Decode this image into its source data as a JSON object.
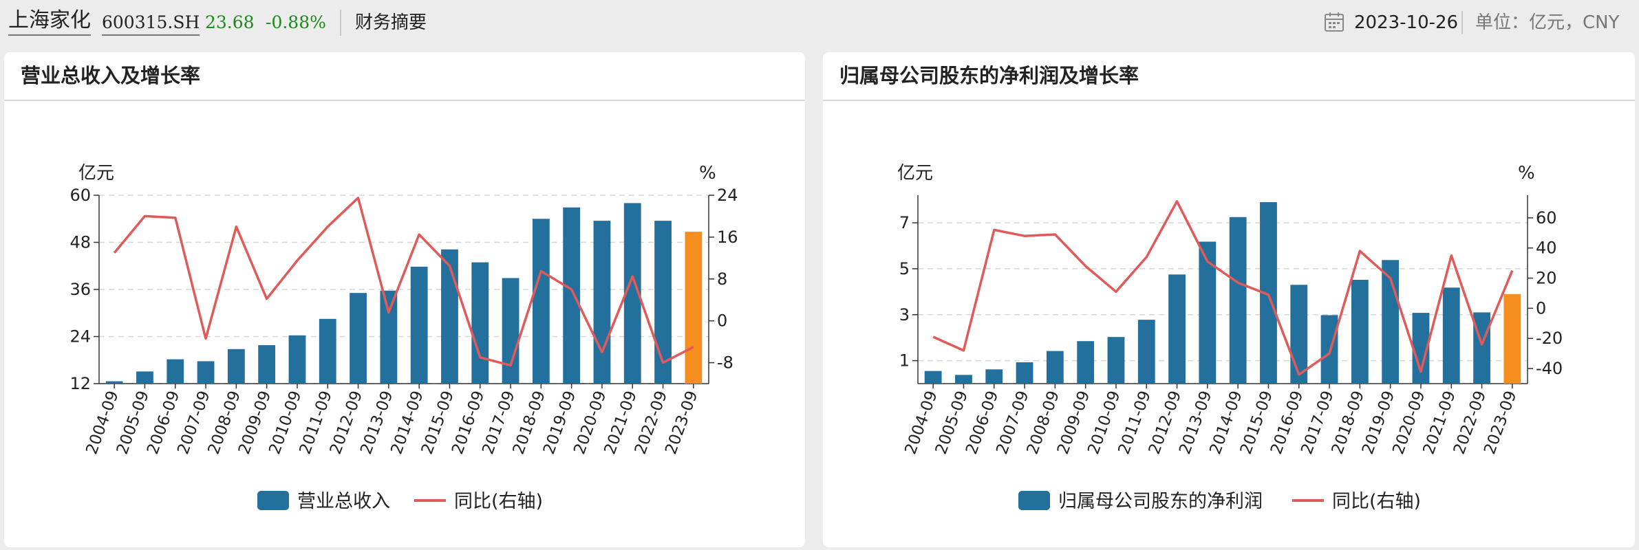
{
  "header": {
    "stock_name": "上海家化",
    "stock_code": "600315.SH",
    "price": "23.68",
    "change": "-0.88%",
    "section": "财务摘要",
    "date": "2023-10-26",
    "unit": "单位：亿元，CNY",
    "calendar_icon": "calendar-icon",
    "change_color": "#1a8a1a"
  },
  "panels": [
    {
      "title": "营业总收入及增长率"
    },
    {
      "title": "归属母公司股东的净利润及增长率"
    }
  ],
  "chart_data": [
    {
      "type": "bar",
      "title": "营业总收入及增长率",
      "left_axis_label": "亿元",
      "right_axis_label": "%",
      "categories": [
        "2004-09",
        "2005-09",
        "2006-09",
        "2007-09",
        "2008-09",
        "2009-09",
        "2010-09",
        "2011-09",
        "2012-09",
        "2013-09",
        "2014-09",
        "2015-09",
        "2016-09",
        "2017-09",
        "2018-09",
        "2019-09",
        "2020-09",
        "2021-09",
        "2022-09",
        "2023-09"
      ],
      "series": [
        {
          "name": "营业总收入",
          "type": "bar",
          "axis": "left",
          "color": "#23709d",
          "highlight_color": "#f68d1f",
          "highlight_index": 19,
          "values": [
            12.6,
            15.1,
            18.2,
            17.7,
            20.8,
            21.8,
            24.3,
            28.5,
            35.1,
            35.7,
            41.8,
            46.2,
            42.9,
            38.9,
            54.0,
            56.9,
            53.5,
            58.0,
            53.5,
            50.7
          ]
        },
        {
          "name": "同比(右轴)",
          "type": "line",
          "axis": "right",
          "color": "#e05a5a",
          "values": [
            13,
            20,
            19.7,
            -3.4,
            18,
            4.2,
            11.5,
            18,
            23.5,
            1.6,
            16.5,
            10.5,
            -7,
            -8.5,
            9.5,
            6,
            -6,
            8.5,
            -8,
            -5
          ]
        }
      ],
      "ylim_left": [
        12,
        60
      ],
      "yticks_left": [
        12,
        24,
        36,
        48,
        60
      ],
      "ylim_right": [
        -12,
        24
      ],
      "yticks_right": [
        -8,
        0,
        8,
        16,
        24
      ],
      "legend_position": "bottom",
      "grid": true
    },
    {
      "type": "bar",
      "title": "归属母公司股东的净利润及增长率",
      "left_axis_label": "亿元",
      "right_axis_label": "%",
      "categories": [
        "2004-09",
        "2005-09",
        "2006-09",
        "2007-09",
        "2008-09",
        "2009-09",
        "2010-09",
        "2011-09",
        "2012-09",
        "2013-09",
        "2014-09",
        "2015-09",
        "2016-09",
        "2017-09",
        "2018-09",
        "2019-09",
        "2020-09",
        "2021-09",
        "2022-09",
        "2023-09"
      ],
      "series": [
        {
          "name": "归属母公司股东的净利润",
          "type": "bar",
          "axis": "left",
          "color": "#23709d",
          "highlight_color": "#f68d1f",
          "highlight_index": 19,
          "values": [
            0.55,
            0.38,
            0.62,
            0.93,
            1.42,
            1.85,
            2.03,
            2.78,
            4.75,
            6.18,
            7.25,
            7.9,
            4.3,
            2.98,
            4.52,
            5.38,
            3.08,
            4.18,
            3.1,
            3.9
          ]
        },
        {
          "name": "同比(右轴)",
          "type": "line",
          "axis": "right",
          "color": "#e05a5a",
          "values": [
            -19,
            -28,
            52,
            48,
            49,
            28,
            11,
            34,
            71,
            31,
            17,
            9,
            -44,
            -30,
            38,
            20,
            -42,
            35,
            -24,
            25
          ]
        }
      ],
      "ylim_left": [
        0,
        8.2
      ],
      "yticks_left": [
        1,
        3,
        5,
        7
      ],
      "ylim_right": [
        -50,
        75
      ],
      "yticks_right": [
        -40,
        -20,
        0,
        20,
        40,
        60
      ],
      "legend_position": "bottom",
      "grid": true
    }
  ]
}
